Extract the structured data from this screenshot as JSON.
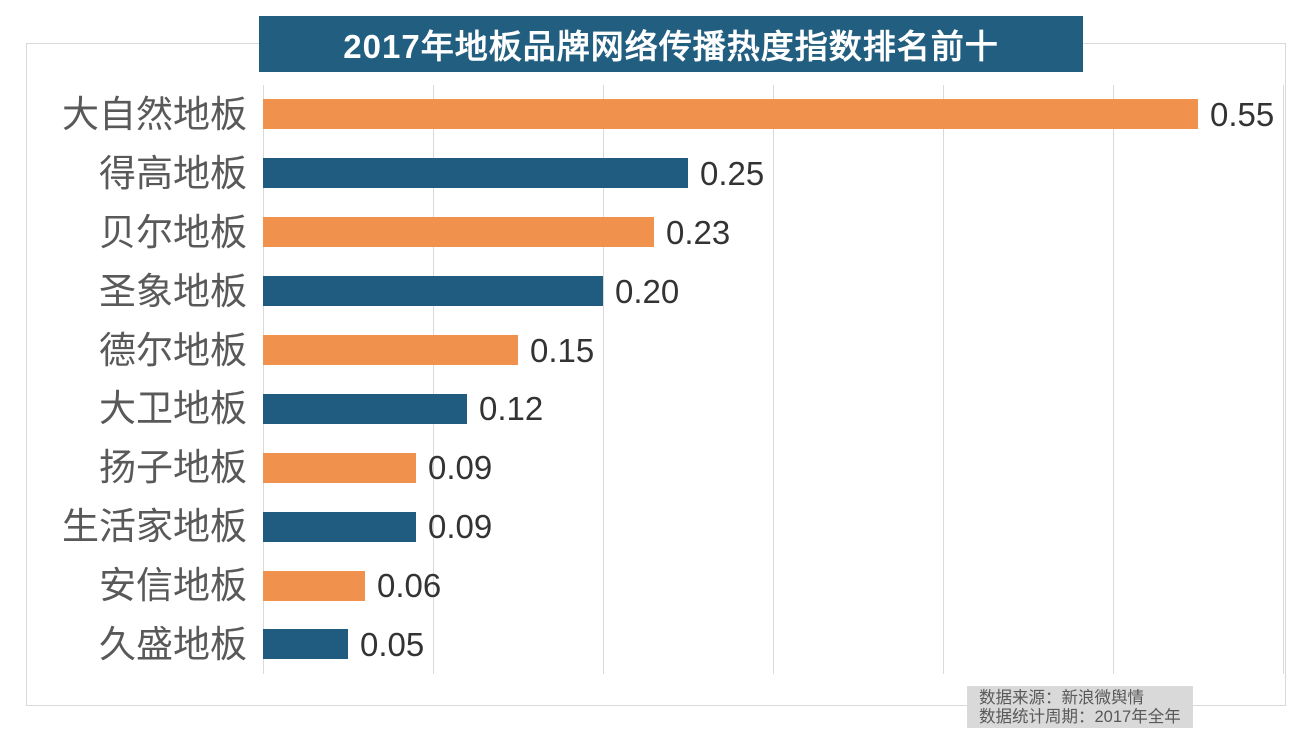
{
  "title": "2017年地板品牌网络传播热度指数排名前十",
  "source_note": {
    "line1": "数据来源：新浪微舆情",
    "line2": "数据统计周期：2017年全年"
  },
  "colors": {
    "title_bg": "#215e80",
    "bar_orange": "#f0924d",
    "bar_blue": "#1f5c80",
    "gridline": "#d9d9d9",
    "category_label": "#595959",
    "value_label": "#333333",
    "note_bg": "#d9d9d9",
    "note_text": "#595959"
  },
  "chart_data": {
    "type": "bar",
    "orientation": "horizontal",
    "title": "2017年地板品牌网络传播热度指数排名前十",
    "categories": [
      "大自然地板",
      "得高地板",
      "贝尔地板",
      "圣象地板",
      "德尔地板",
      "大卫地板",
      "扬子地板",
      "生活家地板",
      "安信地板",
      "久盛地板"
    ],
    "values": [
      0.55,
      0.25,
      0.23,
      0.2,
      0.15,
      0.12,
      0.09,
      0.09,
      0.06,
      0.05
    ],
    "value_labels": [
      "0.55",
      "0.25",
      "0.23",
      "0.20",
      "0.15",
      "0.12",
      "0.09",
      "0.09",
      "0.06",
      "0.05"
    ],
    "xlabel": "",
    "ylabel": "",
    "xlim": [
      0,
      0.6
    ],
    "gridline_interval": 0.1,
    "grid": true,
    "legend": false,
    "bar_color_pattern_alternating": [
      "#f0924d",
      "#1f5c80"
    ],
    "value_label_position": "right-of-bar",
    "source_lines": [
      "数据来源：新浪微舆情",
      "数据统计周期：2017年全年"
    ]
  }
}
